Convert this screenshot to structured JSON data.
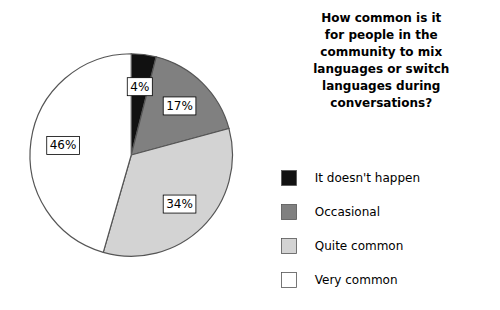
{
  "chart_data": {
    "type": "pie",
    "title": "How common is it\nfor people in the\ncommunity to mix\nlanguages or switch\nlanguages during\nconversations?",
    "categories": [
      "It doesn't happen",
      "Occasional",
      "Quite common",
      "Very common"
    ],
    "values": [
      4,
      17,
      34,
      46
    ],
    "value_labels": [
      "4%",
      "17%",
      "34%",
      "46%"
    ],
    "colors": [
      "#111111",
      "#808080",
      "#d3d3d3",
      "#ffffff"
    ],
    "data_labels": true,
    "legend": "right"
  }
}
